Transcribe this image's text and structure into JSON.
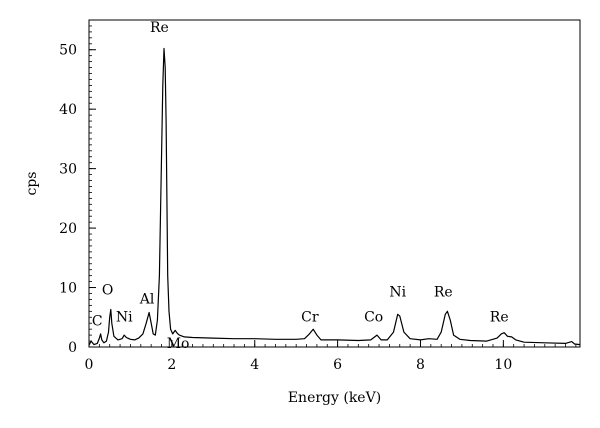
{
  "chart_data": {
    "type": "line",
    "title": "",
    "xlabel": "Energy (keV)",
    "ylabel": "cps",
    "xlim": [
      0,
      11.85
    ],
    "ylim": [
      0,
      55
    ],
    "grid": false,
    "x_ticks": [
      0,
      2,
      4,
      6,
      8,
      10
    ],
    "x_tick_labels": [
      "0",
      "2",
      "4",
      "6",
      "8",
      "10"
    ],
    "y_ticks": [
      0,
      10,
      20,
      30,
      40,
      50
    ],
    "y_tick_labels": [
      "0",
      "10",
      "20",
      "30",
      "40",
      "50"
    ],
    "x_minor_step": 0.25,
    "y_minor_step": 1,
    "series": [
      {
        "color": "#000000",
        "points": [
          [
            0.0,
            0.3
          ],
          [
            0.05,
            1.0
          ],
          [
            0.12,
            0.4
          ],
          [
            0.2,
            0.6
          ],
          [
            0.25,
            1.5
          ],
          [
            0.28,
            2.2
          ],
          [
            0.31,
            1.2
          ],
          [
            0.36,
            0.7
          ],
          [
            0.42,
            1.0
          ],
          [
            0.47,
            2.5
          ],
          [
            0.5,
            5.0
          ],
          [
            0.525,
            6.3
          ],
          [
            0.55,
            4.0
          ],
          [
            0.6,
            1.8
          ],
          [
            0.7,
            1.2
          ],
          [
            0.8,
            1.4
          ],
          [
            0.85,
            2.0
          ],
          [
            0.9,
            1.6
          ],
          [
            1.0,
            1.3
          ],
          [
            1.1,
            1.2
          ],
          [
            1.2,
            1.5
          ],
          [
            1.3,
            2.2
          ],
          [
            1.38,
            4.0
          ],
          [
            1.45,
            5.8
          ],
          [
            1.5,
            4.0
          ],
          [
            1.55,
            2.2
          ],
          [
            1.6,
            2.0
          ],
          [
            1.65,
            4.5
          ],
          [
            1.7,
            12.0
          ],
          [
            1.74,
            28.0
          ],
          [
            1.78,
            44.0
          ],
          [
            1.81,
            50.2
          ],
          [
            1.84,
            47.0
          ],
          [
            1.86,
            38.0
          ],
          [
            1.88,
            25.0
          ],
          [
            1.9,
            12.0
          ],
          [
            1.93,
            6.0
          ],
          [
            1.97,
            3.0
          ],
          [
            2.02,
            2.2
          ],
          [
            2.08,
            2.8
          ],
          [
            2.13,
            2.3
          ],
          [
            2.18,
            2.0
          ],
          [
            2.3,
            1.7
          ],
          [
            2.5,
            1.6
          ],
          [
            3.0,
            1.5
          ],
          [
            3.5,
            1.4
          ],
          [
            4.0,
            1.4
          ],
          [
            4.5,
            1.3
          ],
          [
            5.0,
            1.3
          ],
          [
            5.2,
            1.4
          ],
          [
            5.32,
            2.2
          ],
          [
            5.41,
            3.0
          ],
          [
            5.5,
            2.0
          ],
          [
            5.6,
            1.2
          ],
          [
            6.0,
            1.2
          ],
          [
            6.5,
            1.1
          ],
          [
            6.8,
            1.2
          ],
          [
            6.95,
            2.0
          ],
          [
            7.05,
            1.2
          ],
          [
            7.2,
            1.2
          ],
          [
            7.35,
            2.5
          ],
          [
            7.45,
            5.5
          ],
          [
            7.5,
            5.2
          ],
          [
            7.6,
            2.5
          ],
          [
            7.75,
            1.4
          ],
          [
            8.0,
            1.2
          ],
          [
            8.2,
            1.4
          ],
          [
            8.4,
            1.3
          ],
          [
            8.5,
            2.5
          ],
          [
            8.6,
            5.5
          ],
          [
            8.65,
            6.0
          ],
          [
            8.72,
            4.5
          ],
          [
            8.8,
            2.0
          ],
          [
            8.95,
            1.3
          ],
          [
            9.2,
            1.1
          ],
          [
            9.6,
            1.0
          ],
          [
            9.85,
            1.5
          ],
          [
            9.95,
            2.2
          ],
          [
            10.02,
            2.4
          ],
          [
            10.1,
            1.8
          ],
          [
            10.2,
            1.7
          ],
          [
            10.3,
            1.2
          ],
          [
            10.5,
            0.8
          ],
          [
            11.0,
            0.7
          ],
          [
            11.5,
            0.6
          ],
          [
            11.65,
            0.9
          ],
          [
            11.72,
            0.5
          ],
          [
            11.85,
            0.4
          ]
        ]
      }
    ],
    "annotations": [
      {
        "text": "Re",
        "x": 1.7,
        "y": 53.0
      },
      {
        "text": "O",
        "x": 0.45,
        "y": 8.8
      },
      {
        "text": "C",
        "x": 0.2,
        "y": 3.6
      },
      {
        "text": "Ni",
        "x": 0.85,
        "y": 4.3
      },
      {
        "text": "Al",
        "x": 1.4,
        "y": 7.3
      },
      {
        "text": "Mo",
        "x": 2.15,
        "y": -0.2
      },
      {
        "text": "Cr",
        "x": 5.33,
        "y": 4.3
      },
      {
        "text": "Co",
        "x": 6.87,
        "y": 4.3
      },
      {
        "text": "Ni",
        "x": 7.45,
        "y": 8.5
      },
      {
        "text": "Re",
        "x": 8.55,
        "y": 8.5
      },
      {
        "text": "Re",
        "x": 9.9,
        "y": 4.3
      }
    ]
  }
}
